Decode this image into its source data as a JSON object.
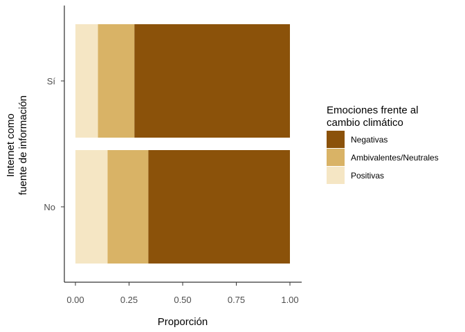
{
  "chart_data": {
    "type": "bar",
    "orientation": "horizontal",
    "stacked": true,
    "categories": [
      "Sí",
      "No"
    ],
    "series": [
      {
        "name": "Positivas",
        "color": "#f5e6c4",
        "values": [
          0.105,
          0.15
        ]
      },
      {
        "name": "Ambivalentes/Neutrales",
        "color": "#d9b366",
        "values": [
          0.17,
          0.19
        ]
      },
      {
        "name": "Negativas",
        "color": "#8b520a",
        "values": [
          0.725,
          0.66
        ]
      }
    ],
    "xlabel": "Proporción",
    "ylabel_lines": [
      "Internet como",
      "fuente de información"
    ],
    "xlim": [
      0,
      1
    ],
    "x_ticks": [
      {
        "value": 0,
        "label": "0.00"
      },
      {
        "value": 0.25,
        "label": "0.25"
      },
      {
        "value": 0.5,
        "label": "0.50"
      },
      {
        "value": 0.75,
        "label": "0.75"
      },
      {
        "value": 1,
        "label": "1.00"
      }
    ],
    "grid": false,
    "legend": {
      "title_lines": [
        "Emociones frente al",
        "cambio climático"
      ],
      "placement": "right",
      "order": [
        "Negativas",
        "Ambivalentes/Neutrales",
        "Positivas"
      ]
    }
  }
}
